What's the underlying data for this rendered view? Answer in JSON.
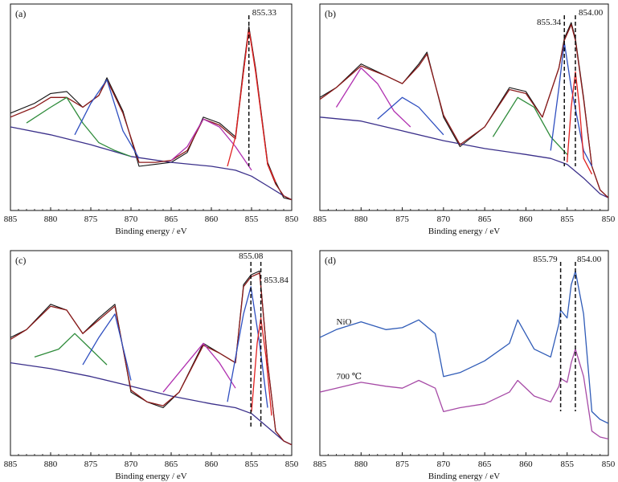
{
  "figure": {
    "colors": {
      "raw": "#111111",
      "envelope": "#8b1a1a",
      "background": "#3a2f8a",
      "magenta": "#b030b0",
      "green": "#2e8b3a",
      "blue": "#2f4fc0",
      "red": "#e02020",
      "nio_curve": "#2f5bb7",
      "c700_curve": "#a64aa6",
      "axis": "#111111"
    }
  },
  "chart_data": [
    {
      "type": "line",
      "panel_label": "(a)",
      "xlabel": "Binding energy / eV",
      "xlim": [
        885,
        850
      ],
      "ylim": [
        0,
        100
      ],
      "x_ticks": [
        885,
        880,
        875,
        870,
        865,
        860,
        855,
        850
      ],
      "annotations": [
        {
          "text": "855.33",
          "x": 855.33
        }
      ],
      "series": [
        {
          "role": "raw",
          "color": "#111111",
          "x": [
            885,
            882,
            880,
            878,
            876,
            874,
            873,
            871,
            869,
            867,
            865,
            863,
            861,
            859,
            857,
            856,
            855.33,
            854.5,
            853,
            852,
            851,
            850
          ],
          "y": [
            47,
            52,
            57,
            58,
            50,
            56,
            65,
            48,
            20,
            21,
            22,
            27,
            45,
            42,
            35,
            70,
            91,
            70,
            22,
            12,
            4,
            3
          ]
        },
        {
          "role": "background",
          "color": "#3a2f8a",
          "x": [
            885,
            880,
            875,
            870,
            865,
            860,
            857,
            855,
            853,
            851,
            850
          ],
          "y": [
            40,
            36,
            31,
            25,
            22,
            20,
            18,
            15,
            10,
            5,
            3
          ]
        },
        {
          "role": "envelope",
          "color": "#8b1a1a",
          "x": [
            885,
            882,
            880,
            878,
            876,
            874,
            873,
            871,
            869,
            867,
            865,
            863,
            861,
            859,
            857,
            856,
            855.33,
            854.5,
            853,
            852,
            851,
            850
          ],
          "y": [
            45,
            50,
            55,
            55,
            50,
            56,
            64,
            47,
            22,
            22,
            23,
            28,
            44,
            41,
            34,
            68,
            90,
            69,
            21,
            11,
            5,
            3
          ]
        },
        {
          "role": "component",
          "color": "#b030b0",
          "x": [
            865,
            863,
            861,
            859,
            857,
            855
          ],
          "y": [
            23,
            30,
            44,
            40,
            30,
            18
          ]
        },
        {
          "role": "component",
          "color": "#2e8b3a",
          "x": [
            883,
            880,
            878,
            876,
            874,
            872,
            870
          ],
          "y": [
            42,
            50,
            55,
            42,
            32,
            28,
            25
          ]
        },
        {
          "role": "component",
          "color": "#2f4fc0",
          "x": [
            877,
            875,
            873,
            871,
            869
          ],
          "y": [
            36,
            52,
            64,
            38,
            24
          ]
        },
        {
          "role": "component",
          "color": "#e02020",
          "x": [
            858,
            857,
            856,
            855.33,
            854.5,
            853,
            852
          ],
          "y": [
            20,
            35,
            68,
            90,
            68,
            21,
            12
          ]
        }
      ]
    },
    {
      "type": "line",
      "panel_label": "(b)",
      "xlabel": "Binding energy / eV",
      "xlim": [
        885,
        850
      ],
      "ylim": [
        0,
        100
      ],
      "x_ticks": [
        885,
        880,
        875,
        870,
        865,
        860,
        855,
        850
      ],
      "annotations": [
        {
          "text": "855.34",
          "x": 855.34
        },
        {
          "text": "854.00",
          "x": 854.0
        }
      ],
      "series": [
        {
          "role": "raw",
          "color": "#111111",
          "x": [
            885,
            883,
            880,
            877,
            875,
            873,
            872,
            870,
            868,
            865,
            862,
            860,
            858,
            856,
            855.34,
            854.5,
            854,
            853,
            852,
            851,
            850
          ],
          "y": [
            55,
            60,
            72,
            66,
            62,
            72,
            78,
            45,
            30,
            40,
            60,
            58,
            45,
            70,
            85,
            93,
            85,
            55,
            20,
            8,
            4
          ]
        },
        {
          "role": "background",
          "color": "#3a2f8a",
          "x": [
            885,
            880,
            875,
            870,
            865,
            860,
            857,
            855,
            853,
            851,
            850
          ],
          "y": [
            45,
            43,
            38,
            33,
            29,
            26,
            24,
            21,
            14,
            6,
            4
          ]
        },
        {
          "role": "envelope",
          "color": "#8b1a1a",
          "x": [
            885,
            883,
            880,
            877,
            875,
            873,
            872,
            870,
            868,
            865,
            862,
            860,
            858,
            856,
            855.34,
            854.5,
            854,
            853,
            852,
            851,
            850
          ],
          "y": [
            54,
            60,
            71,
            66,
            62,
            71,
            77,
            46,
            31,
            40,
            59,
            57,
            45,
            70,
            84,
            92,
            84,
            54,
            20,
            8,
            4
          ]
        },
        {
          "role": "component",
          "color": "#b030b0",
          "x": [
            883,
            880,
            878,
            876,
            874
          ],
          "y": [
            50,
            70,
            62,
            48,
            40
          ]
        },
        {
          "role": "component",
          "color": "#2f4fc0",
          "x": [
            878,
            875,
            873,
            870
          ],
          "y": [
            44,
            55,
            50,
            36
          ]
        },
        {
          "role": "component",
          "color": "#2e8b3a",
          "x": [
            864,
            861,
            859,
            857,
            855
          ],
          "y": [
            35,
            55,
            50,
            35,
            26
          ]
        },
        {
          "role": "component",
          "color": "#2f4fc0",
          "x": [
            857,
            856,
            855.34,
            854.5,
            853,
            852
          ],
          "y": [
            28,
            60,
            83,
            60,
            28,
            20
          ]
        },
        {
          "role": "component",
          "color": "#e02020",
          "x": [
            855,
            854.5,
            854,
            853.5,
            853,
            852
          ],
          "y": [
            22,
            50,
            68,
            50,
            24,
            16
          ]
        }
      ]
    },
    {
      "type": "line",
      "panel_label": "(c)",
      "xlabel": "Binding energy / eV",
      "xlim": [
        885,
        850
      ],
      "ylim": [
        0,
        100
      ],
      "x_ticks": [
        885,
        880,
        875,
        870,
        865,
        860,
        855,
        850
      ],
      "annotations": [
        {
          "text": "855.08",
          "x": 855.08
        },
        {
          "text": "853.84",
          "x": 853.84
        }
      ],
      "series": [
        {
          "role": "raw",
          "color": "#111111",
          "x": [
            885,
            883,
            880,
            878,
            876,
            874,
            872,
            870,
            868,
            866,
            864,
            861,
            859,
            857,
            856,
            855.08,
            854,
            853.84,
            853,
            852,
            851,
            850
          ],
          "y": [
            58,
            62,
            75,
            72,
            60,
            68,
            75,
            30,
            25,
            22,
            30,
            55,
            50,
            45,
            85,
            90,
            92,
            85,
            45,
            10,
            5,
            3
          ]
        },
        {
          "role": "background",
          "color": "#3a2f8a",
          "x": [
            885,
            880,
            875,
            870,
            865,
            860,
            857,
            855,
            853,
            851,
            850
          ],
          "y": [
            45,
            42,
            38,
            33,
            28,
            24,
            22,
            19,
            12,
            5,
            3
          ]
        },
        {
          "role": "envelope",
          "color": "#8b1a1a",
          "x": [
            885,
            883,
            880,
            878,
            876,
            874,
            872,
            870,
            868,
            866,
            864,
            861,
            859,
            857,
            856,
            855.08,
            854,
            853.84,
            853,
            852,
            851,
            850
          ],
          "y": [
            57,
            62,
            74,
            72,
            60,
            67,
            74,
            31,
            25,
            23,
            30,
            54,
            50,
            45,
            84,
            89,
            91,
            84,
            45,
            10,
            5,
            3
          ]
        },
        {
          "role": "component",
          "color": "#2e8b3a",
          "x": [
            882,
            879,
            877,
            875,
            873
          ],
          "y": [
            48,
            52,
            60,
            52,
            44
          ]
        },
        {
          "role": "component",
          "color": "#2f4fc0",
          "x": [
            876,
            874,
            872,
            870
          ],
          "y": [
            44,
            58,
            70,
            36
          ]
        },
        {
          "role": "component",
          "color": "#b030b0",
          "x": [
            866,
            863,
            861,
            859,
            857
          ],
          "y": [
            30,
            45,
            55,
            45,
            32
          ]
        },
        {
          "role": "component",
          "color": "#2f4fc0",
          "x": [
            858,
            856,
            855.08,
            854,
            853
          ],
          "y": [
            25,
            70,
            84,
            55,
            22
          ]
        },
        {
          "role": "component",
          "color": "#e02020",
          "x": [
            855,
            854.3,
            853.84,
            853.2,
            852.5
          ],
          "y": [
            20,
            55,
            68,
            48,
            18
          ]
        }
      ]
    },
    {
      "type": "line",
      "panel_label": "(d)",
      "xlabel": "Binding energy / eV",
      "xlim": [
        885,
        850
      ],
      "ylim": [
        0,
        100
      ],
      "x_ticks": [
        885,
        880,
        875,
        870,
        865,
        860,
        855,
        850
      ],
      "annotations": [
        {
          "text": "855.79",
          "x": 855.79
        },
        {
          "text": "854.00",
          "x": 854.0
        }
      ],
      "series": [
        {
          "name": "NiO",
          "color": "#2f5bb7",
          "x": [
            885,
            883,
            880,
            877,
            875,
            873,
            871,
            870,
            868,
            865,
            862,
            861,
            859,
            857,
            856,
            855.79,
            855,
            854.5,
            854,
            853,
            852,
            851,
            850
          ],
          "y": [
            58,
            62,
            66,
            62,
            63,
            67,
            60,
            38,
            40,
            46,
            55,
            67,
            52,
            48,
            65,
            72,
            68,
            85,
            92,
            70,
            20,
            16,
            14
          ]
        },
        {
          "name": "700 ℃",
          "color": "#a64aa6",
          "x": [
            885,
            883,
            880,
            877,
            875,
            873,
            871,
            870,
            868,
            865,
            862,
            861,
            859,
            857,
            856,
            855.79,
            855,
            854.5,
            854,
            853,
            852,
            851,
            850
          ],
          "y": [
            30,
            32,
            35,
            33,
            32,
            36,
            32,
            20,
            22,
            24,
            30,
            36,
            28,
            25,
            33,
            37,
            35,
            45,
            52,
            38,
            10,
            7,
            6
          ]
        }
      ]
    }
  ]
}
